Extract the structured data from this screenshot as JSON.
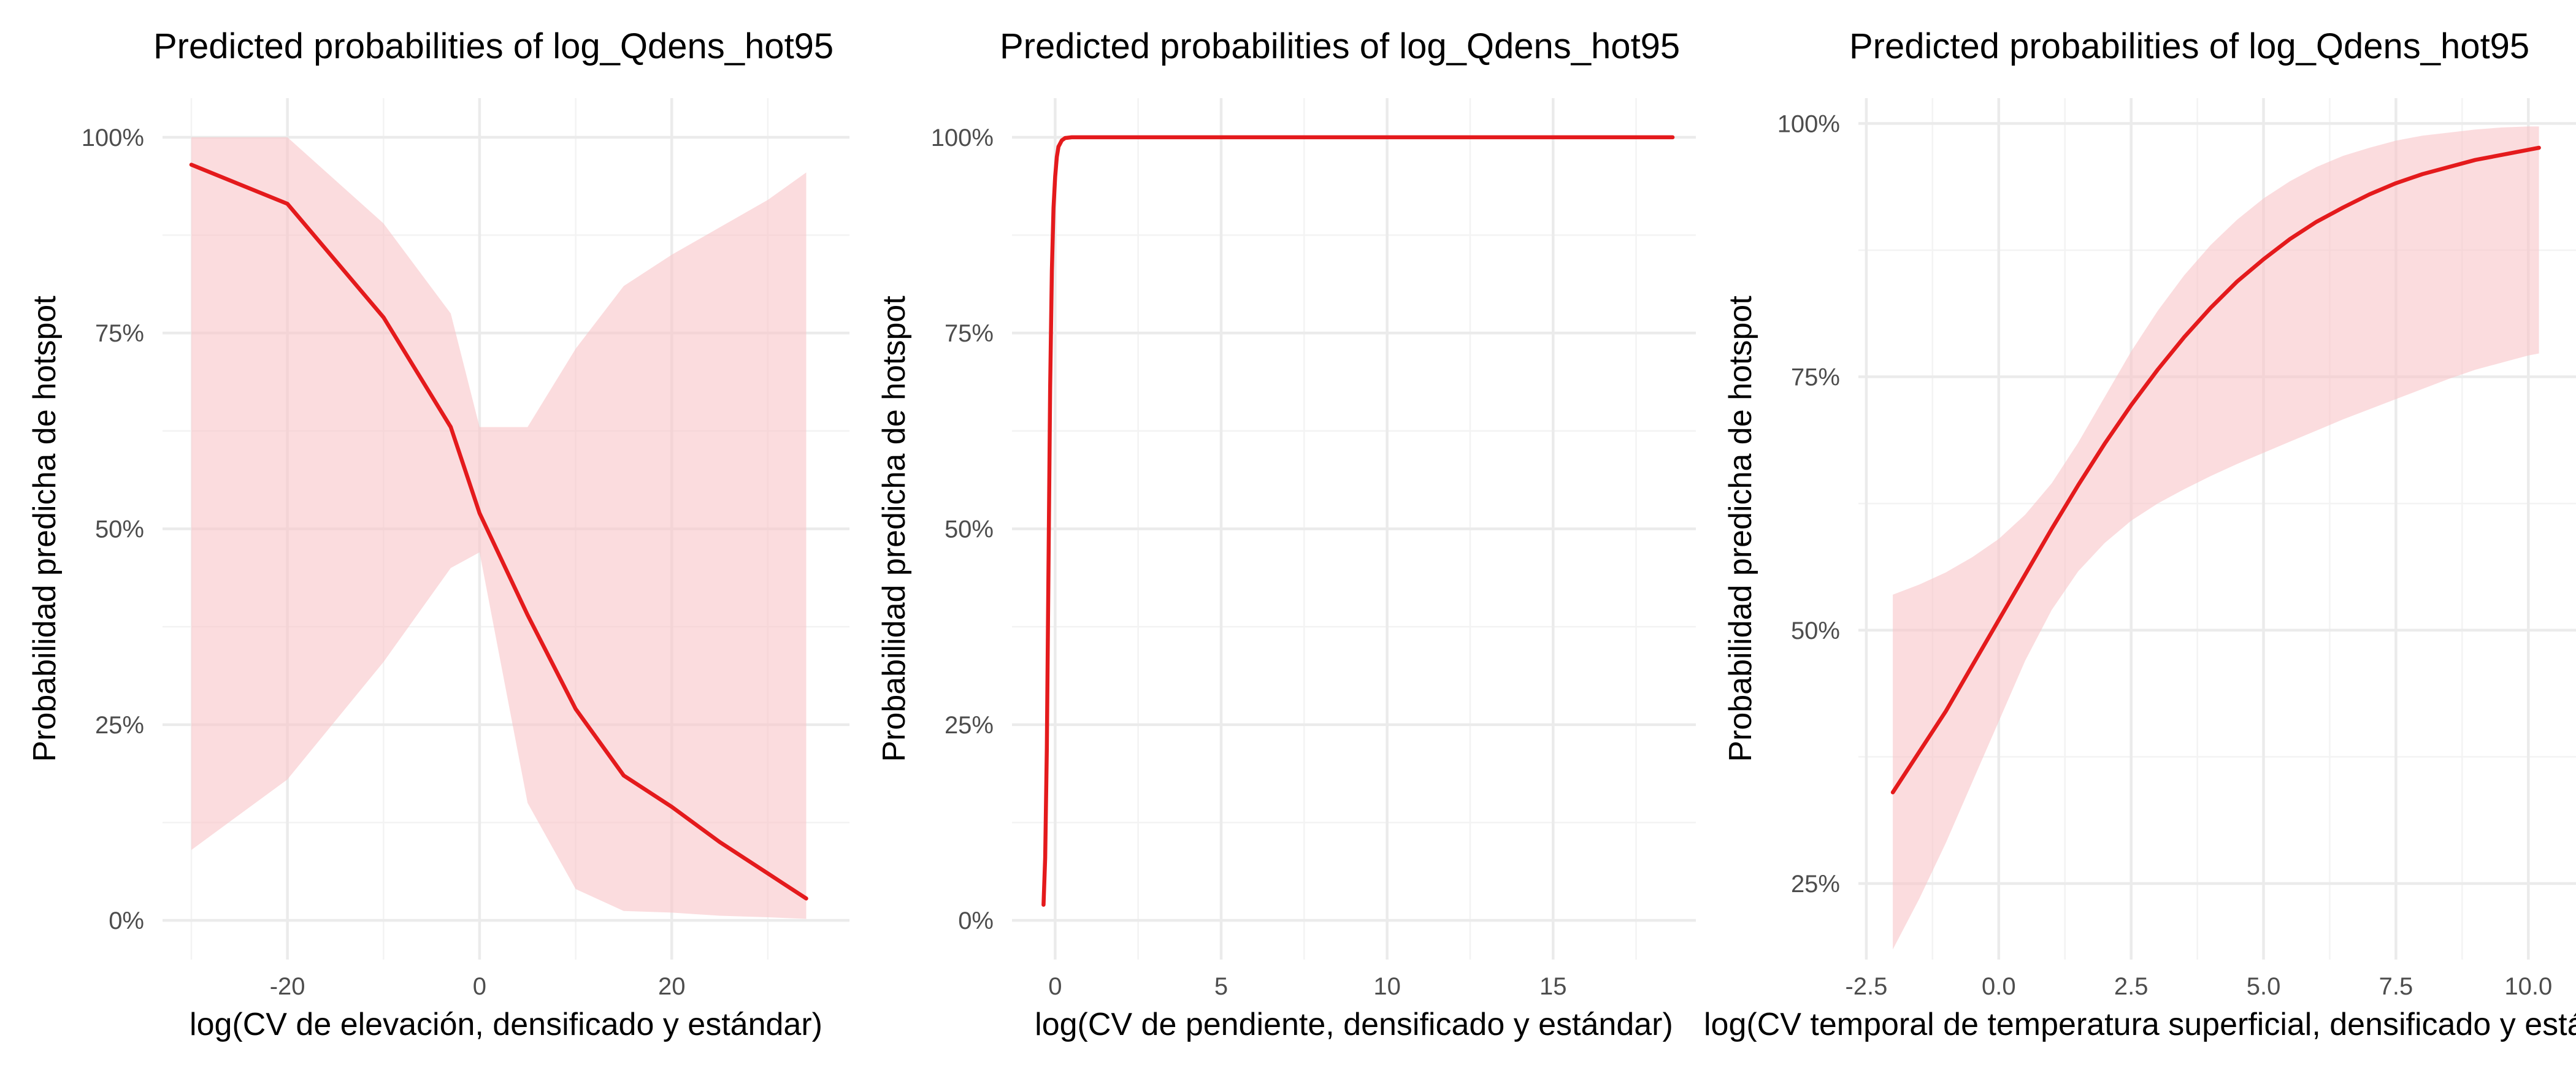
{
  "chart_data": [
    {
      "type": "line",
      "title": "Predicted probabilities of log_Qdens_hot95",
      "xlabel": "log(CV de elevación, densificado y estándar)",
      "ylabel": "Probabilidad predicha de hotspot",
      "xlim": [
        -33,
        38.5
      ],
      "ylim": [
        -0.05,
        1.05
      ],
      "xticks": [
        -20,
        0,
        20
      ],
      "xtick_labels": [
        "-20",
        "0",
        "20"
      ],
      "xminor": [
        -30,
        -10,
        10,
        30
      ],
      "yticks": [
        0,
        0.25,
        0.5,
        0.75,
        1.0
      ],
      "ytick_labels": [
        "0%",
        "25%",
        "50%",
        "75%",
        "100%"
      ],
      "yminor": [
        0.125,
        0.375,
        0.625,
        0.875
      ],
      "grid": true,
      "series": [
        {
          "x": [
            -30,
            -20,
            -10,
            -3,
            0,
            5,
            10,
            15,
            20,
            25,
            30,
            34
          ],
          "y": [
            0.965,
            0.915,
            0.77,
            0.63,
            0.52,
            0.39,
            0.27,
            0.185,
            0.145,
            0.1,
            0.06,
            0.028
          ],
          "lower": [
            0.09,
            0.18,
            0.33,
            0.45,
            0.47,
            0.15,
            0.04,
            0.012,
            0.01,
            0.006,
            0.004,
            0.002
          ],
          "upper": [
            1.0,
            1.0,
            0.89,
            0.775,
            0.63,
            0.63,
            0.73,
            0.81,
            0.85,
            0.885,
            0.92,
            0.955
          ]
        }
      ]
    },
    {
      "type": "line",
      "title": "Predicted probabilities of log_Qdens_hot95",
      "xlabel": "log(CV de pendiente, densificado y estándar)",
      "ylabel": "Probabilidad predicha de hotspot",
      "xlim": [
        -1.3,
        19.3
      ],
      "ylim": [
        -0.05,
        1.05
      ],
      "xticks": [
        0,
        5,
        10,
        15
      ],
      "xtick_labels": [
        "0",
        "5",
        "10",
        "15"
      ],
      "xminor": [
        2.5,
        7.5,
        12.5,
        17.5
      ],
      "yticks": [
        0,
        0.25,
        0.5,
        0.75,
        1.0
      ],
      "ytick_labels": [
        "0%",
        "25%",
        "50%",
        "75%",
        "100%"
      ],
      "yminor": [
        0.125,
        0.375,
        0.625,
        0.875
      ],
      "grid": true,
      "series": [
        {
          "x": [
            -0.35,
            -0.3,
            -0.25,
            -0.2,
            -0.15,
            -0.1,
            -0.05,
            0.0,
            0.05,
            0.1,
            0.2,
            0.3,
            0.5,
            1,
            5,
            10,
            15,
            18.6
          ],
          "y": [
            0.02,
            0.08,
            0.22,
            0.45,
            0.68,
            0.83,
            0.91,
            0.95,
            0.975,
            0.988,
            0.996,
            0.999,
            1.0,
            1.0,
            1.0,
            1.0,
            1.0,
            1.0
          ],
          "lower": [],
          "upper": []
        }
      ]
    },
    {
      "type": "line",
      "title": "Predicted probabilities of log_Qdens_hot95",
      "xlabel": "log(CV temporal de temperatura superficial, densificado y estándar)",
      "ylabel": "Probabilidad predicha de hotspot",
      "xlim": [
        -2.65,
        10.9
      ],
      "ylim": [
        0.175,
        1.025
      ],
      "xticks": [
        -2.5,
        0,
        2.5,
        5,
        7.5,
        10
      ],
      "xtick_labels": [
        "-2.5",
        "0.0",
        "2.5",
        "5.0",
        "7.5",
        "10.0"
      ],
      "xminor": [
        -1.25,
        1.25,
        3.75,
        6.25,
        8.75
      ],
      "yticks": [
        0.25,
        0.5,
        0.75,
        1.0
      ],
      "ytick_labels": [
        "25%",
        "50%",
        "75%",
        "100%"
      ],
      "yminor": [
        0.375,
        0.625,
        0.875
      ],
      "grid": true,
      "series": [
        {
          "x": [
            -2,
            -1.5,
            -1,
            -0.5,
            0,
            0.5,
            1,
            1.5,
            2,
            2.5,
            3,
            3.5,
            4,
            4.5,
            5,
            5.5,
            6,
            6.5,
            7,
            7.5,
            8,
            8.5,
            9,
            9.5,
            10,
            10.2
          ],
          "y": [
            0.34,
            0.38,
            0.42,
            0.465,
            0.51,
            0.555,
            0.6,
            0.643,
            0.684,
            0.722,
            0.757,
            0.789,
            0.818,
            0.844,
            0.866,
            0.886,
            0.903,
            0.917,
            0.93,
            0.941,
            0.95,
            0.957,
            0.964,
            0.969,
            0.974,
            0.976
          ],
          "lower": [
            0.185,
            0.235,
            0.29,
            0.35,
            0.41,
            0.47,
            0.52,
            0.558,
            0.586,
            0.608,
            0.625,
            0.639,
            0.652,
            0.664,
            0.675,
            0.686,
            0.697,
            0.708,
            0.718,
            0.728,
            0.738,
            0.748,
            0.757,
            0.764,
            0.771,
            0.773
          ],
          "upper": [
            0.535,
            0.545,
            0.557,
            0.572,
            0.59,
            0.614,
            0.645,
            0.685,
            0.73,
            0.775,
            0.815,
            0.85,
            0.88,
            0.905,
            0.926,
            0.943,
            0.957,
            0.968,
            0.976,
            0.983,
            0.988,
            0.991,
            0.994,
            0.996,
            0.997,
            0.997
          ]
        }
      ]
    }
  ]
}
